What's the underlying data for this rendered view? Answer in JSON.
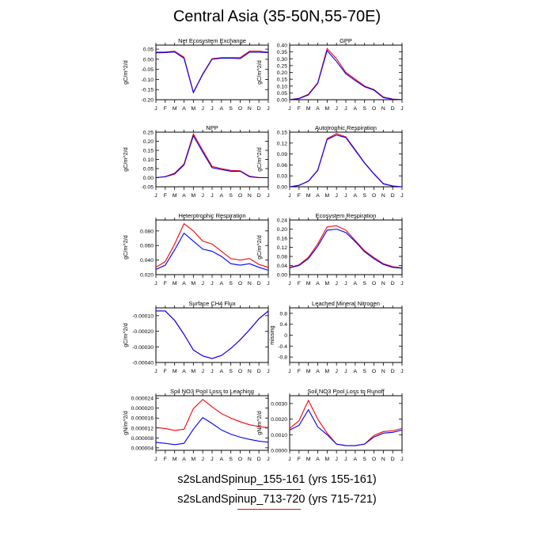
{
  "page": {
    "title": "Central Asia (35-50N,55-70E)",
    "legend": [
      {
        "label": "s2sLandSpinup_155-161 (yrs 155-161)",
        "color": "#0000ff"
      },
      {
        "label": "s2sLandSpinup_713-720 (yrs 715-721)",
        "color": "#ff0000"
      }
    ]
  },
  "chart_data": [
    {
      "type": "line",
      "title": "Net Ecosystem Exchange",
      "ylabel": "gC/m^2/d",
      "categories": [
        "J",
        "F",
        "M",
        "A",
        "M",
        "J",
        "J",
        "A",
        "S",
        "O",
        "N",
        "D",
        "J"
      ],
      "ylim": [
        -0.2,
        0.07
      ],
      "yticks": [
        "0.05",
        "0.00",
        "-0.05",
        "-0.10",
        "-0.15",
        "-0.20"
      ],
      "ytick_values": [
        0.05,
        0.0,
        -0.05,
        -0.1,
        -0.15,
        -0.2
      ],
      "series": [
        {
          "values": [
            0.032,
            0.033,
            0.036,
            0.005,
            -0.165,
            -0.075,
            0.0,
            0.005,
            0.005,
            0.003,
            0.035,
            0.035,
            0.033
          ],
          "color": "#0000ff"
        },
        {
          "values": [
            0.035,
            0.036,
            0.04,
            0.01,
            -0.163,
            -0.072,
            0.003,
            0.008,
            0.008,
            0.008,
            0.04,
            0.04,
            0.035
          ],
          "color": "#ff0000"
        }
      ]
    },
    {
      "type": "line",
      "title": "GPP",
      "ylabel": "gC/m^2/d",
      "categories": [
        "J",
        "F",
        "M",
        "A",
        "M",
        "J",
        "J",
        "A",
        "S",
        "O",
        "N",
        "D",
        "J"
      ],
      "ylim": [
        0.0,
        0.4
      ],
      "yticks": [
        "0.40",
        "0.35",
        "0.30",
        "0.25",
        "0.20",
        "0.15",
        "0.10",
        "0.05",
        "0.00"
      ],
      "ytick_values": [
        0.4,
        0.35,
        0.3,
        0.25,
        0.2,
        0.15,
        0.1,
        0.05,
        0.0
      ],
      "series": [
        {
          "values": [
            0.0,
            0.008,
            0.035,
            0.12,
            0.36,
            0.28,
            0.19,
            0.14,
            0.095,
            0.07,
            0.015,
            0.003,
            0.0
          ],
          "color": "#0000ff"
        },
        {
          "values": [
            0.001,
            0.01,
            0.04,
            0.125,
            0.375,
            0.3,
            0.2,
            0.15,
            0.1,
            0.075,
            0.02,
            0.005,
            0.001
          ],
          "color": "#ff0000"
        }
      ]
    },
    {
      "type": "line",
      "title": "NPP",
      "ylabel": "gC/m^2/d",
      "categories": [
        "J",
        "F",
        "M",
        "A",
        "M",
        "J",
        "J",
        "A",
        "S",
        "O",
        "N",
        "D",
        "J"
      ],
      "ylim": [
        -0.05,
        0.25
      ],
      "yticks": [
        "0.25",
        "0.20",
        "0.15",
        "0.10",
        "0.05",
        "0.00",
        "-0.05"
      ],
      "ytick_values": [
        0.25,
        0.2,
        0.15,
        0.1,
        0.05,
        0.0,
        -0.05
      ],
      "series": [
        {
          "values": [
            0.0,
            0.005,
            0.02,
            0.07,
            0.23,
            0.14,
            0.055,
            0.045,
            0.035,
            0.035,
            0.005,
            0.0,
            0.0
          ],
          "color": "#0000ff"
        },
        {
          "values": [
            0.0,
            0.006,
            0.025,
            0.075,
            0.24,
            0.15,
            0.062,
            0.05,
            0.04,
            0.038,
            0.008,
            0.001,
            0.0
          ],
          "color": "#ff0000"
        }
      ]
    },
    {
      "type": "line",
      "title": "Autotrophic Respiration",
      "ylabel": "gC/m^2/d",
      "categories": [
        "J",
        "F",
        "M",
        "A",
        "M",
        "J",
        "J",
        "A",
        "S",
        "O",
        "N",
        "D",
        "J"
      ],
      "ylim": [
        0.0,
        0.15
      ],
      "yticks": [
        "0.15",
        "0.12",
        "0.09",
        "0.06",
        "0.03",
        "0.00"
      ],
      "ytick_values": [
        0.15,
        0.12,
        0.09,
        0.06,
        0.03,
        0.0
      ],
      "series": [
        {
          "values": [
            0.0,
            0.004,
            0.015,
            0.045,
            0.13,
            0.142,
            0.135,
            0.1,
            0.065,
            0.035,
            0.008,
            0.002,
            0.0
          ],
          "color": "#0000ff"
        },
        {
          "values": [
            0.0,
            0.004,
            0.016,
            0.046,
            0.132,
            0.146,
            0.137,
            0.102,
            0.066,
            0.036,
            0.009,
            0.002,
            0.0
          ],
          "color": "#ff0000"
        }
      ]
    },
    {
      "type": "line",
      "title": "Heterotrophic Respiration",
      "ylabel": "gC/m^2/d",
      "categories": [
        "J",
        "F",
        "M",
        "A",
        "M",
        "J",
        "J",
        "A",
        "S",
        "O",
        "N",
        "D",
        "J"
      ],
      "ylim": [
        0.02,
        0.095
      ],
      "yticks": [
        "0.080",
        "0.060",
        "0.040",
        "0.020"
      ],
      "ytick_values": [
        0.08,
        0.06,
        0.04,
        0.02
      ],
      "series": [
        {
          "values": [
            0.027,
            0.033,
            0.054,
            0.077,
            0.066,
            0.055,
            0.052,
            0.045,
            0.035,
            0.033,
            0.035,
            0.03,
            0.026
          ],
          "color": "#0000ff"
        },
        {
          "values": [
            0.03,
            0.038,
            0.062,
            0.09,
            0.08,
            0.066,
            0.062,
            0.052,
            0.042,
            0.04,
            0.042,
            0.034,
            0.03
          ],
          "color": "#ff0000"
        }
      ]
    },
    {
      "type": "line",
      "title": "Ecosystem Respiration",
      "ylabel": "gC/m^2/d",
      "categories": [
        "J",
        "F",
        "M",
        "A",
        "M",
        "J",
        "J",
        "A",
        "S",
        "O",
        "N",
        "D",
        "J"
      ],
      "ylim": [
        0.0,
        0.24
      ],
      "yticks": [
        "0.24",
        "0.20",
        "0.16",
        "0.12",
        "0.08",
        "0.04",
        "0.00"
      ],
      "ytick_values": [
        0.24,
        0.2,
        0.16,
        0.12,
        0.08,
        0.04,
        0.0
      ],
      "series": [
        {
          "values": [
            0.03,
            0.04,
            0.07,
            0.125,
            0.195,
            0.2,
            0.185,
            0.145,
            0.1,
            0.07,
            0.045,
            0.032,
            0.028
          ],
          "color": "#0000ff"
        },
        {
          "values": [
            0.032,
            0.043,
            0.076,
            0.135,
            0.21,
            0.215,
            0.195,
            0.15,
            0.105,
            0.075,
            0.048,
            0.035,
            0.03
          ],
          "color": "#ff0000"
        }
      ]
    },
    {
      "type": "line",
      "title": "Surface CH4 Flux",
      "ylabel": "gC/m^2/d",
      "categories": [
        "J",
        "F",
        "M",
        "A",
        "M",
        "J",
        "J",
        "A",
        "S",
        "O",
        "N",
        "D",
        "J"
      ],
      "ylim": [
        -0.0004,
        -5e-05
      ],
      "yticks": [
        "-0.00010",
        "-0.00020",
        "-0.00030",
        "-0.00040"
      ],
      "ytick_values": [
        -0.0001,
        -0.0002,
        -0.0003,
        -0.0004
      ],
      "series": [
        {
          "values": [
            -7e-05,
            -7e-05,
            -0.00013,
            -0.00022,
            -0.00032,
            -0.000358,
            -0.000375,
            -0.000355,
            -0.00031,
            -0.000255,
            -0.00019,
            -0.00012,
            -7e-05
          ],
          "color": "#0000ff"
        },
        {
          "values": [
            -7e-05,
            -7e-05,
            -0.00013,
            -0.00022,
            -0.00032,
            -0.000358,
            -0.000375,
            -0.000355,
            -0.00031,
            -0.000255,
            -0.00019,
            -0.00012,
            -7e-05
          ],
          "color": "#ff0000"
        }
      ]
    },
    {
      "type": "line",
      "title": "Leached Mineral Nitrogen",
      "ylabel": "missing",
      "categories": [
        "J",
        "F",
        "M",
        "A",
        "M",
        "J",
        "J",
        "A",
        "S",
        "O",
        "N",
        "D",
        "J"
      ],
      "ylim": [
        -1.0,
        1.0
      ],
      "yticks": [
        "0.8",
        "0.4",
        "0",
        "-0.4",
        "-0.8"
      ],
      "ytick_values": [
        0.8,
        0.4,
        0,
        -0.4,
        -0.8
      ],
      "series": []
    },
    {
      "type": "line",
      "title": "Soil NO3 Pool Loss to Leaching",
      "ylabel": "gN/m^2/d",
      "categories": [
        "J",
        "F",
        "M",
        "A",
        "M",
        "J",
        "J",
        "A",
        "S",
        "O",
        "N",
        "D",
        "J"
      ],
      "ylim": [
        3e-06,
        2.5e-05
      ],
      "yticks": [
        "0.000024",
        "0.000020",
        "0.000016",
        "0.000012",
        "0.000008",
        "0.000004"
      ],
      "ytick_values": [
        2.4e-05,
        2e-05,
        1.6e-05,
        1.2e-05,
        8e-06,
        4e-06
      ],
      "series": [
        {
          "values": [
            6.2e-06,
            5.8e-06,
            5.3e-06,
            5.8e-06,
            1.15e-05,
            1.62e-05,
            1.38e-05,
            1.12e-05,
            9.5e-06,
            8.3e-06,
            7.4e-06,
            6.7e-06,
            6.3e-06
          ],
          "color": "#0000ff"
        },
        {
          "values": [
            1.22e-05,
            1.18e-05,
            1.1e-05,
            1.15e-05,
            1.98e-05,
            2.35e-05,
            2.05e-05,
            1.78e-05,
            1.6e-05,
            1.45e-05,
            1.33e-05,
            1.26e-05,
            1.21e-05
          ],
          "color": "#ff0000"
        }
      ]
    },
    {
      "type": "line",
      "title": "Soil NO3 Pool Loss to Runoff",
      "ylabel": "gN/m^2/d",
      "categories": [
        "J",
        "F",
        "M",
        "A",
        "M",
        "J",
        "J",
        "A",
        "S",
        "O",
        "N",
        "D",
        "J"
      ],
      "ylim": [
        0.0,
        0.0035
      ],
      "yticks": [
        "0.0030",
        "0.0020",
        "0.0010",
        "0.0000"
      ],
      "ytick_values": [
        0.003,
        0.002,
        0.001,
        0.0
      ],
      "series": [
        {
          "values": [
            0.0013,
            0.0016,
            0.0026,
            0.0015,
            0.001,
            0.0004,
            0.0003,
            0.0003,
            0.0004,
            0.00085,
            0.0011,
            0.00115,
            0.0013
          ],
          "color": "#0000ff"
        },
        {
          "values": [
            0.0014,
            0.0019,
            0.0032,
            0.002,
            0.0011,
            0.0004,
            0.0003,
            0.0003,
            0.0004,
            0.00095,
            0.0012,
            0.00125,
            0.0014
          ],
          "color": "#ff0000"
        }
      ]
    }
  ]
}
